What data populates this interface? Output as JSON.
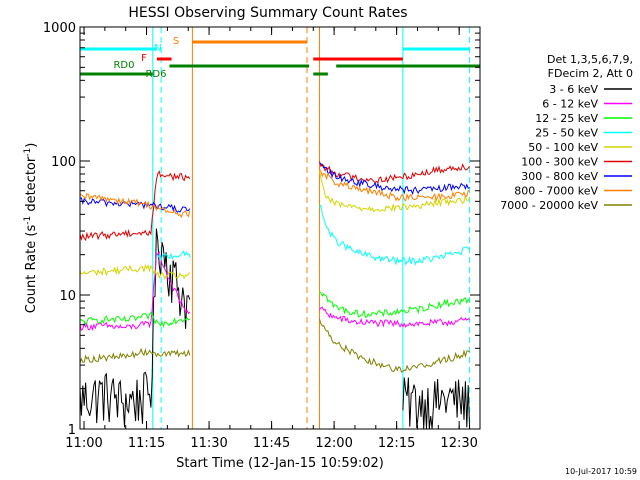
{
  "chart_data": {
    "type": "line",
    "title": "HESSI Observing Summary Count Rates",
    "xlabel": "Start Time (12-Jan-15 10:59:02)",
    "ylabel_pre": "Count Rate (s",
    "ylabel_sup": "-1",
    "ylabel_post": " detector",
    "ylabel_end": ")",
    "y_scale": "log",
    "ylim": [
      1,
      1000
    ],
    "xlim": [
      "10:59:02",
      "12:35:00"
    ],
    "x_ticks": [
      "11:00",
      "11:15",
      "11:30",
      "11:45",
      "12:00",
      "12:15",
      "12:30"
    ],
    "y_ticks": [
      "1",
      "10",
      "100",
      "1000"
    ],
    "grid": false,
    "legend_position": "right",
    "legend_header": [
      "Det 1,3,5,6,7,9,",
      "FDecim 2, Att 0"
    ],
    "timestamp": "10-Jul-2017 10:59",
    "state_labels": {
      "N": "N",
      "S": "S",
      "F": "F",
      "RD0": "RD0",
      "RD6": "RD6"
    },
    "state_bars": [
      {
        "label": "N",
        "color": "#00ffff",
        "segments": [
          [
            "10:59:02",
            "11:17:30"
          ],
          [
            "12:16:30",
            "12:32:30"
          ]
        ]
      },
      {
        "label": "S",
        "color": "#ff7f00",
        "segments": [
          [
            "11:26:00",
            "11:53:30"
          ]
        ]
      },
      {
        "label": "F",
        "color": "#ff0000",
        "segments": [
          [
            "11:17:30",
            "11:21:00"
          ],
          [
            "11:55:00",
            "12:16:30"
          ]
        ]
      },
      {
        "label": "RD0",
        "color": "#008000",
        "segments": [
          [
            "11:20:30",
            "11:54:00"
          ],
          [
            "12:00:30",
            "12:35:00"
          ]
        ]
      },
      {
        "label": "RD6",
        "color": "#008000",
        "segments": [
          [
            "10:59:02",
            "11:16:30"
          ],
          [
            "11:55:00",
            "11:58:30"
          ]
        ]
      }
    ],
    "event_lines": [
      {
        "time": "11:16:30",
        "color": "#00ffff",
        "style": "solid"
      },
      {
        "time": "11:18:30",
        "color": "#00ffff",
        "style": "dashed"
      },
      {
        "time": "11:26:00",
        "color": "#ff7f00",
        "style": "solid"
      },
      {
        "time": "11:53:30",
        "color": "#ff7f00",
        "style": "dashed"
      },
      {
        "time": "11:56:30",
        "color": "#ff7f00",
        "style": "solid"
      },
      {
        "time": "12:16:30",
        "color": "#00ffff",
        "style": "solid"
      },
      {
        "time": "12:32:30",
        "color": "#00ffff",
        "style": "dashed"
      }
    ],
    "series": [
      {
        "name": "3 - 6 keV",
        "color": "#000000",
        "pre": [
          [
            "10:59:02",
            1.7
          ],
          [
            "11:05:00",
            1.9
          ],
          [
            "11:10:00",
            1.6
          ],
          [
            "11:16:00",
            1.9
          ],
          [
            "11:17:30",
            28
          ],
          [
            "11:20:00",
            18
          ],
          [
            "11:23:00",
            11
          ],
          [
            "11:25:30",
            8
          ]
        ],
        "post": [
          [
            "12:16:30",
            1.7
          ],
          [
            "12:22:00",
            1.6
          ],
          [
            "12:28:00",
            1.7
          ],
          [
            "12:32:30",
            1.6
          ]
        ]
      },
      {
        "name": "6 - 12 keV",
        "color": "#ff00ff",
        "pre": [
          [
            "10:59:02",
            5.8
          ],
          [
            "11:05:00",
            5.9
          ],
          [
            "11:10:00",
            5.7
          ],
          [
            "11:16:00",
            6.1
          ],
          [
            "11:17:30",
            22
          ],
          [
            "11:20:00",
            14
          ],
          [
            "11:23:00",
            9
          ],
          [
            "11:25:30",
            7
          ]
        ],
        "post": [
          [
            "11:56:30",
            8
          ],
          [
            "12:00:00",
            6.8
          ],
          [
            "12:05:00",
            6.3
          ],
          [
            "12:10:00",
            6.2
          ],
          [
            "12:15:00",
            6.1
          ],
          [
            "12:20:00",
            6.1
          ],
          [
            "12:25:00",
            6.2
          ],
          [
            "12:32:30",
            6.5
          ]
        ]
      },
      {
        "name": "12 - 25 keV",
        "color": "#00ff00",
        "pre": [
          [
            "10:59:02",
            6.3
          ],
          [
            "11:05:00",
            6.6
          ],
          [
            "11:10:00",
            6.5
          ],
          [
            "11:16:00",
            7
          ],
          [
            "11:18:00",
            6
          ],
          [
            "11:21:00",
            6.4
          ],
          [
            "11:25:30",
            6.8
          ]
        ],
        "post": [
          [
            "11:56:30",
            11
          ],
          [
            "12:00:00",
            8.2
          ],
          [
            "12:05:00",
            7.3
          ],
          [
            "12:10:00",
            7.2
          ],
          [
            "12:15:00",
            7.5
          ],
          [
            "12:20:00",
            7.8
          ],
          [
            "12:25:00",
            8.5
          ],
          [
            "12:32:30",
            9.2
          ]
        ]
      },
      {
        "name": "25 - 50 keV",
        "color": "#00ffff",
        "pre": [
          [
            "11:17:30",
            19
          ],
          [
            "11:20:00",
            19.5
          ],
          [
            "11:23:00",
            20
          ],
          [
            "11:25:30",
            20
          ]
        ],
        "post": [
          [
            "11:56:30",
            48
          ],
          [
            "11:58:00",
            33
          ],
          [
            "12:00:00",
            26
          ],
          [
            "12:05:00",
            21
          ],
          [
            "12:10:00",
            19
          ],
          [
            "12:15:00",
            18
          ],
          [
            "12:20:00",
            18
          ],
          [
            "12:25:00",
            19
          ],
          [
            "12:32:30",
            22
          ]
        ]
      },
      {
        "name": "50 - 100 keV",
        "color": "#d4d400",
        "pre": [
          [
            "10:59:02",
            14.5
          ],
          [
            "11:05:00",
            15
          ],
          [
            "11:10:00",
            15.5
          ],
          [
            "11:16:00",
            16
          ],
          [
            "11:17:30",
            14
          ],
          [
            "11:21:00",
            14
          ],
          [
            "11:25:30",
            14
          ]
        ],
        "post": [
          [
            "11:56:30",
            80
          ],
          [
            "11:58:00",
            55
          ],
          [
            "12:00:00",
            48
          ],
          [
            "12:05:00",
            45
          ],
          [
            "12:10:00",
            44
          ],
          [
            "12:15:00",
            45
          ],
          [
            "12:20:00",
            46
          ],
          [
            "12:25:00",
            49
          ],
          [
            "12:32:30",
            52
          ]
        ]
      },
      {
        "name": "100 - 300 keV",
        "color": "#e00000",
        "pre": [
          [
            "10:59:02",
            27
          ],
          [
            "11:05:00",
            28
          ],
          [
            "11:10:00",
            29
          ],
          [
            "11:16:00",
            29
          ],
          [
            "11:17:30",
            80
          ],
          [
            "11:20:00",
            78
          ],
          [
            "11:23:00",
            76
          ],
          [
            "11:25:30",
            76
          ]
        ],
        "post": [
          [
            "11:56:30",
            95
          ],
          [
            "12:00:00",
            82
          ],
          [
            "12:05:00",
            75
          ],
          [
            "12:10:00",
            72
          ],
          [
            "12:15:00",
            75
          ],
          [
            "12:20:00",
            80
          ],
          [
            "12:25:00",
            86
          ],
          [
            "12:32:30",
            92
          ]
        ]
      },
      {
        "name": "300 - 800 keV",
        "color": "#0000ff",
        "pre": [
          [
            "10:59:02",
            50
          ],
          [
            "11:05:00",
            49
          ],
          [
            "11:10:00",
            48
          ],
          [
            "11:16:00",
            47
          ],
          [
            "11:20:00",
            45
          ],
          [
            "11:24:00",
            43
          ],
          [
            "11:25:30",
            44
          ]
        ],
        "post": [
          [
            "11:56:30",
            92
          ],
          [
            "12:00:00",
            78
          ],
          [
            "12:05:00",
            70
          ],
          [
            "12:10:00",
            65
          ],
          [
            "12:15:00",
            62
          ],
          [
            "12:20:00",
            60
          ],
          [
            "12:25:00",
            62
          ],
          [
            "12:32:30",
            66
          ]
        ]
      },
      {
        "name": "800 - 7000 keV",
        "color": "#ff7f00",
        "pre": [
          [
            "10:59:02",
            54
          ],
          [
            "11:05:00",
            53
          ],
          [
            "11:10:00",
            50
          ],
          [
            "11:15:00",
            48
          ],
          [
            "11:20:00",
            42
          ],
          [
            "11:24:00",
            40
          ],
          [
            "11:25:30",
            41
          ]
        ],
        "post": [
          [
            "11:56:30",
            84
          ],
          [
            "12:00:00",
            70
          ],
          [
            "12:05:00",
            62
          ],
          [
            "12:10:00",
            58
          ],
          [
            "12:15:00",
            54
          ],
          [
            "12:20:00",
            53
          ],
          [
            "12:25:00",
            54
          ],
          [
            "12:32:30",
            57
          ]
        ]
      },
      {
        "name": "7000 - 20000 keV",
        "color": "#808000",
        "pre": [
          [
            "10:59:02",
            3.3
          ],
          [
            "11:05:00",
            3.4
          ],
          [
            "11:10:00",
            3.5
          ],
          [
            "11:15:00",
            3.8
          ],
          [
            "11:20:00",
            3.6
          ],
          [
            "11:25:30",
            3.7
          ]
        ],
        "post": [
          [
            "11:56:30",
            6.5
          ],
          [
            "11:58:00",
            5.5
          ],
          [
            "12:00:00",
            4.5
          ],
          [
            "12:05:00",
            3.6
          ],
          [
            "12:10:00",
            3.1
          ],
          [
            "12:15:00",
            2.8
          ],
          [
            "12:20:00",
            2.9
          ],
          [
            "12:25:00",
            3.2
          ],
          [
            "12:32:30",
            3.7
          ]
        ]
      }
    ]
  }
}
